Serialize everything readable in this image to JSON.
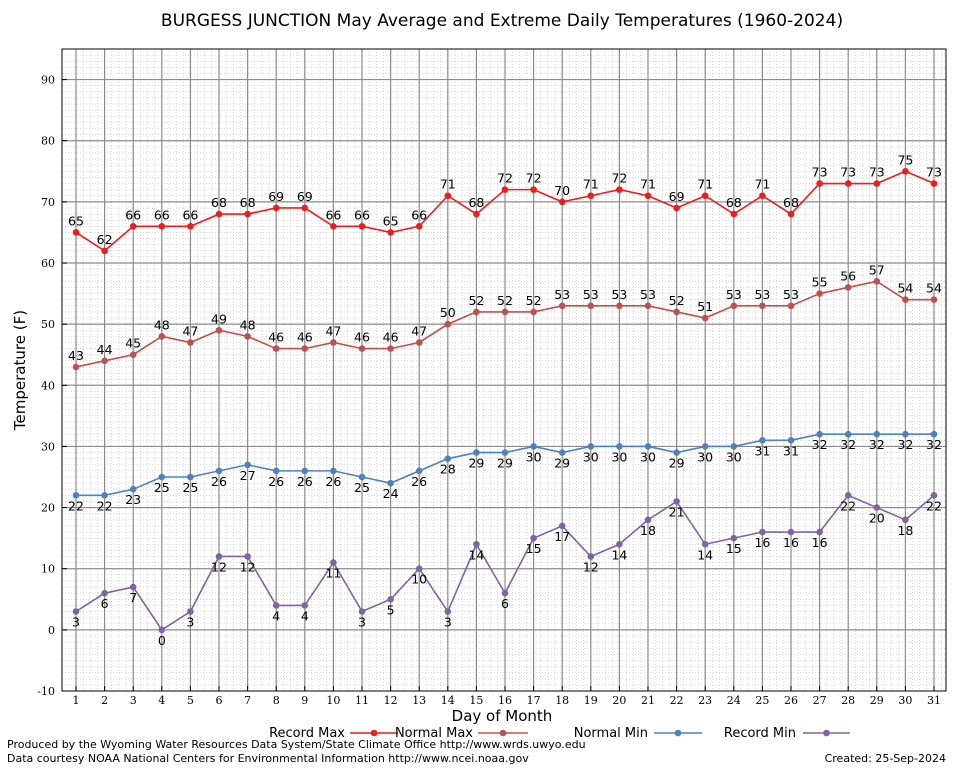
{
  "chart_data": {
    "type": "line",
    "title": "BURGESS JUNCTION May Average and Extreme Daily Temperatures (1960-2024)",
    "xlabel": "Day of Month",
    "ylabel": "Temperature (F)",
    "ylim": [
      -10,
      95
    ],
    "y_ticks": [
      "-10",
      "0",
      "10",
      "20",
      "30",
      "40",
      "50",
      "60",
      "70",
      "80",
      "90"
    ],
    "x": [
      "1",
      "2",
      "3",
      "4",
      "5",
      "6",
      "7",
      "8",
      "9",
      "10",
      "11",
      "12",
      "13",
      "14",
      "15",
      "16",
      "17",
      "18",
      "19",
      "20",
      "21",
      "22",
      "23",
      "24",
      "25",
      "26",
      "27",
      "28",
      "29",
      "30",
      "31"
    ],
    "grid": true,
    "legend_position": "bottom",
    "series": [
      {
        "name": "Record Max",
        "color": "#ee1c1c",
        "values": [
          65,
          62,
          66,
          66,
          66,
          68,
          68,
          69,
          69,
          66,
          66,
          65,
          66,
          71,
          68,
          72,
          72,
          70,
          71,
          72,
          71,
          69,
          71,
          68,
          71,
          68,
          73,
          73,
          73,
          75,
          73
        ],
        "labels": [
          "65",
          "62",
          "66",
          "66",
          "66",
          "68",
          "68",
          "69",
          "69",
          "66",
          "66",
          "65",
          "66",
          "71",
          "68",
          "72",
          "72",
          "70",
          "71",
          "72",
          "71",
          "69",
          "71",
          "68",
          "71",
          "68",
          "73",
          "73",
          "73",
          "75",
          "73"
        ]
      },
      {
        "name": "Normal Max",
        "color": "#c0504d",
        "values": [
          43,
          44,
          45,
          48,
          47,
          49,
          48,
          46,
          46,
          47,
          46,
          46,
          47,
          50,
          52,
          52,
          52,
          53,
          53,
          53,
          53,
          52,
          51,
          53,
          53,
          53,
          55,
          56,
          57,
          54,
          54
        ],
        "labels": [
          "43",
          "44",
          "45",
          "48",
          "47",
          "49",
          "48",
          "46",
          "46",
          "47",
          "46",
          "46",
          "47",
          "50",
          "52",
          "52",
          "52",
          "53",
          "53",
          "53",
          "53",
          "52",
          "51",
          "53",
          "53",
          "53",
          "55",
          "56",
          "57",
          "54",
          "54"
        ]
      },
      {
        "name": "Normal Min",
        "color": "#4f81bd",
        "values": [
          22,
          22,
          23,
          25,
          25,
          26,
          27,
          26,
          26,
          26,
          25,
          24,
          26,
          28,
          29,
          29,
          30,
          29,
          30,
          30,
          30,
          29,
          30,
          30,
          31,
          31,
          32,
          32,
          32,
          32,
          32
        ],
        "labels": [
          "22",
          "22",
          "23",
          "25",
          "25",
          "26",
          "27",
          "26",
          "26",
          "26",
          "25",
          "24",
          "26",
          "28",
          "29",
          "29",
          "30",
          "29",
          "30",
          "30",
          "30",
          "29",
          "30",
          "30",
          "31",
          "31",
          "32",
          "32",
          "32",
          "32",
          "32"
        ]
      },
      {
        "name": "Record Min",
        "color": "#8064a2",
        "values": [
          3,
          6,
          7,
          0,
          3,
          12,
          12,
          4,
          4,
          11,
          3,
          5,
          10,
          3,
          14,
          6,
          15,
          17,
          12,
          14,
          18,
          21,
          14,
          15,
          16,
          16,
          16,
          22,
          20,
          18,
          22
        ],
        "labels": [
          "3",
          "6",
          "7",
          "0",
          "3",
          "12",
          "12",
          "4",
          "4",
          "11",
          "3",
          "5",
          "10",
          "3",
          "14",
          "6",
          "15",
          "17",
          "12",
          "14",
          "18",
          "21",
          "14",
          "15",
          "16",
          "16",
          "16",
          "22",
          "20",
          "18",
          "22"
        ]
      }
    ]
  },
  "footer": {
    "produced_by": "Produced by the Wyoming Water Resources Data System/State Climate Office http://www.wrds.uwyo.edu",
    "data_courtesy": "Data courtesy NOAA National Centers for Environmental Information http://www.ncei.noaa.gov",
    "created": "Created:  25-Sep-2024"
  }
}
